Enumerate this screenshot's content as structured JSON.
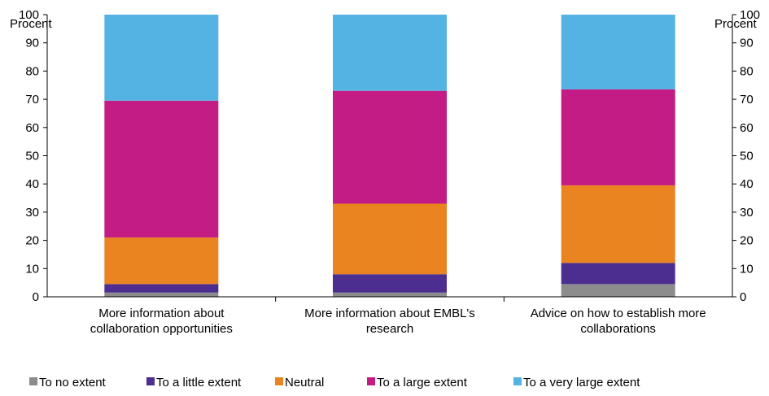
{
  "chart_data": {
    "type": "bar",
    "stacked": true,
    "ylabel_left": "Procent",
    "ylabel_right": "Procent",
    "ylim": [
      0,
      100
    ],
    "yticks": [
      0,
      10,
      20,
      30,
      40,
      50,
      60,
      70,
      80,
      90,
      100
    ],
    "categories": [
      [
        "More information about",
        "collaboration opportunities"
      ],
      [
        "More information about EMBL's",
        "research"
      ],
      [
        "Advice on how to establish more",
        "collaborations"
      ]
    ],
    "series": [
      {
        "name": "To no extent",
        "color": "#8c8c8c",
        "values": [
          1.5,
          1.5,
          4.5
        ]
      },
      {
        "name": "To a little extent",
        "color": "#4b2e8f",
        "values": [
          3.0,
          6.5,
          7.5
        ]
      },
      {
        "name": "Neutral",
        "color": "#e98420",
        "values": [
          16.5,
          25.0,
          27.5
        ]
      },
      {
        "name": "To a large extent",
        "color": "#c41c85",
        "values": [
          48.5,
          40.0,
          34.0
        ]
      },
      {
        "name": "To a very large extent",
        "color": "#55b3e4",
        "values": [
          30.5,
          27.0,
          26.5
        ]
      }
    ],
    "grid": false,
    "legend_position": "bottom"
  }
}
